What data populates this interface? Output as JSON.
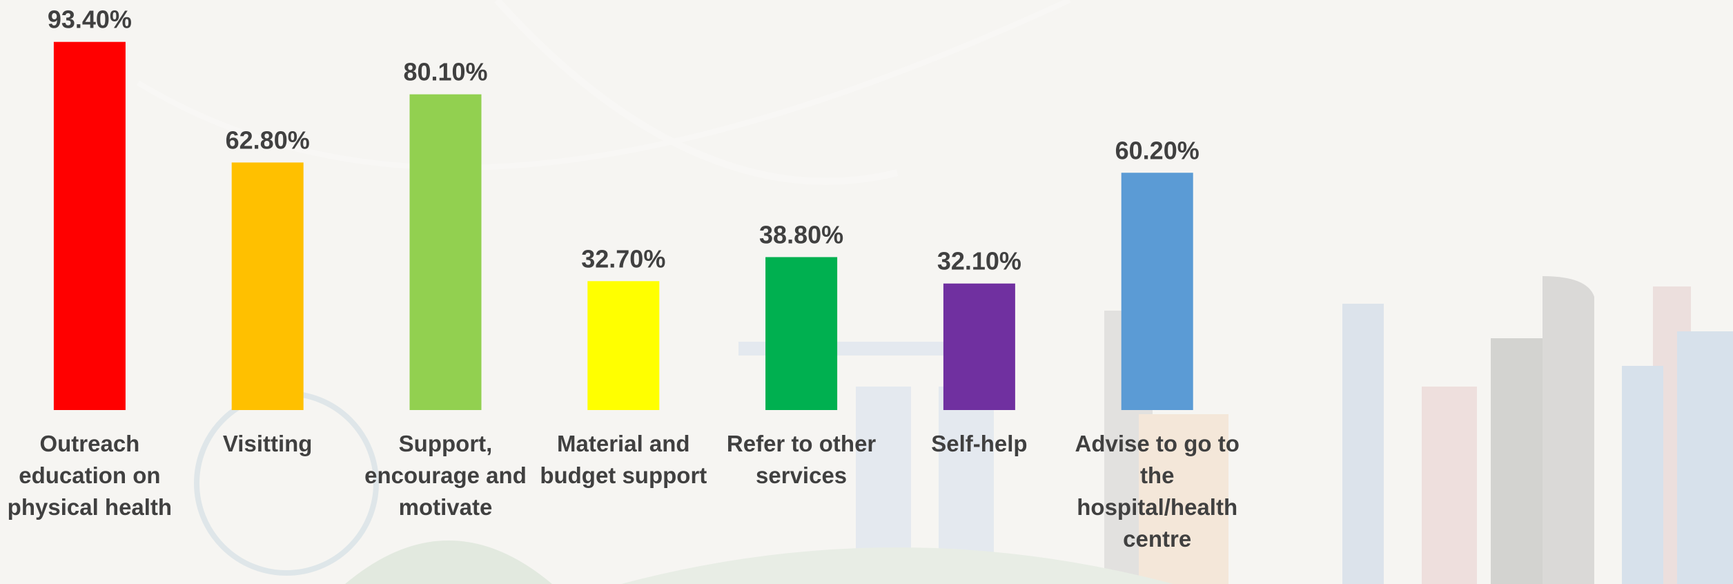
{
  "chart_data": {
    "type": "bar",
    "categories": [
      "Outreach education on physical health",
      "Visitting",
      "Support, encourage and motivate",
      "Material and budget support",
      "Refer to other services",
      "Self-help",
      "Advise to go to the hospital/health centre"
    ],
    "values": [
      93.4,
      62.8,
      80.1,
      32.7,
      38.8,
      32.1,
      60.2
    ],
    "value_labels": [
      "93.40%",
      "62.80%",
      "80.10%",
      "32.70%",
      "38.80%",
      "32.10%",
      "60.20%"
    ],
    "colors": [
      "#ff0000",
      "#ffc000",
      "#92d050",
      "#ffff00",
      "#00b050",
      "#7030a0",
      "#5b9bd5"
    ],
    "ylim": [
      0,
      100
    ]
  }
}
